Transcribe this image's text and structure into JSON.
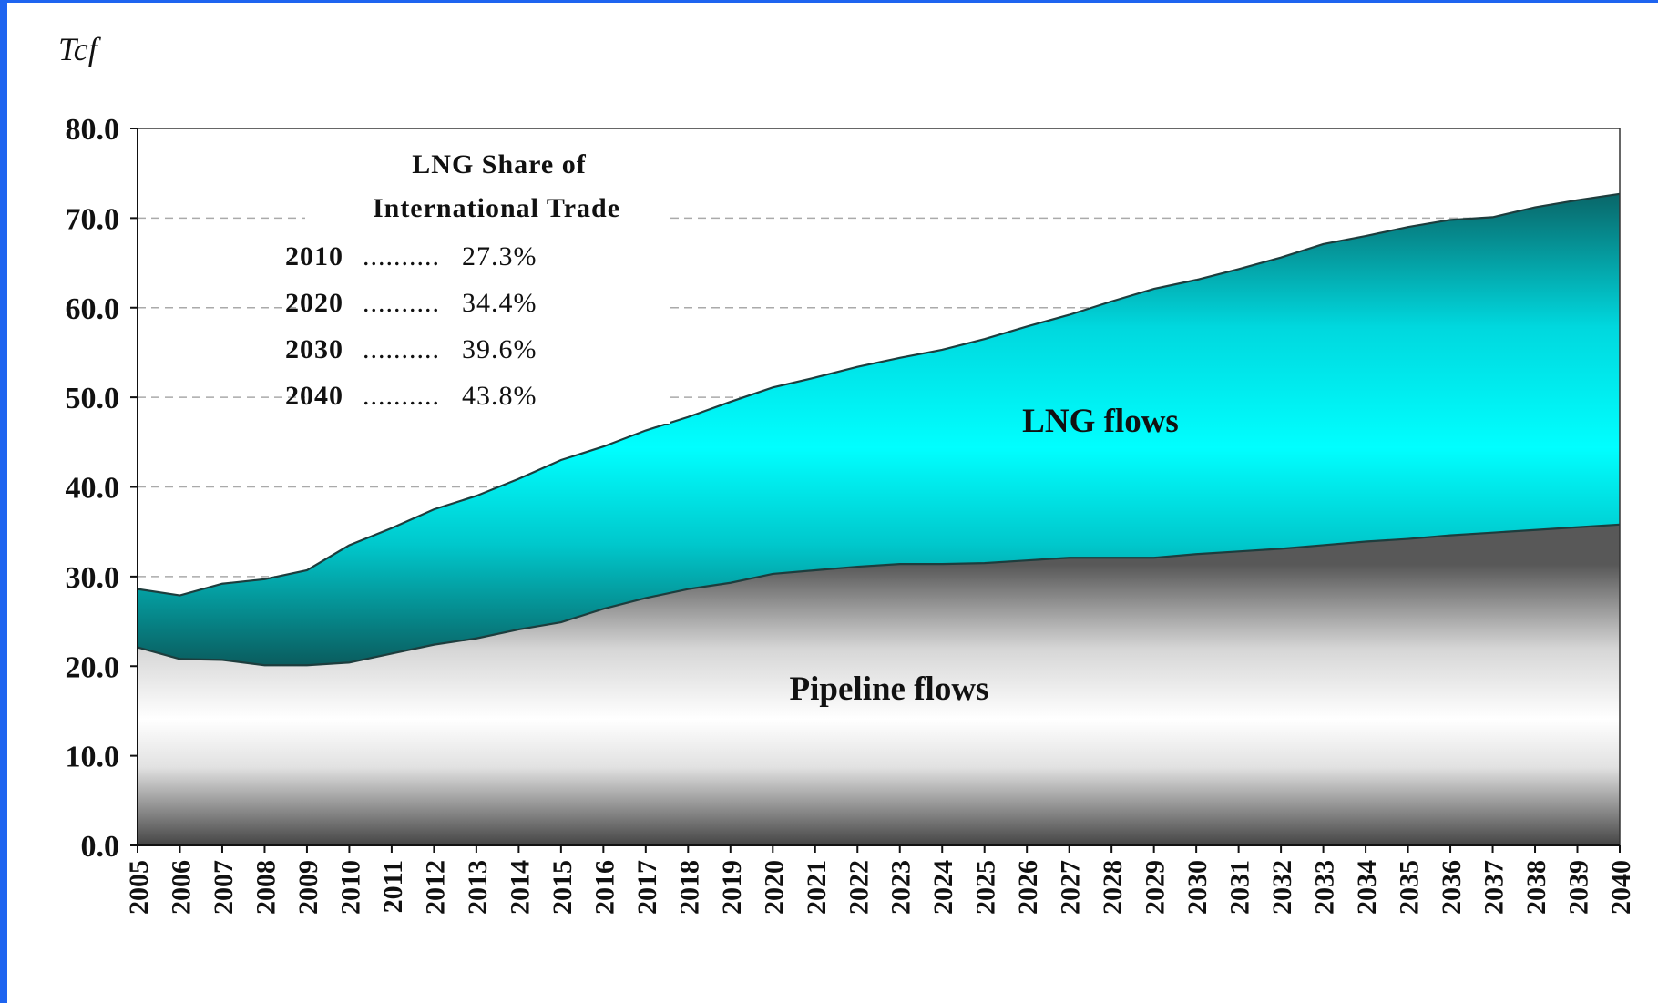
{
  "chart_data": {
    "type": "area",
    "unit_label": "Tcf",
    "x": [
      2005,
      2006,
      2007,
      2008,
      2009,
      2010,
      2011,
      2012,
      2013,
      2014,
      2015,
      2016,
      2017,
      2018,
      2019,
      2020,
      2021,
      2022,
      2023,
      2024,
      2025,
      2026,
      2027,
      2028,
      2029,
      2030,
      2031,
      2032,
      2033,
      2034,
      2035,
      2036,
      2037,
      2038,
      2039,
      2040
    ],
    "x_tick_labels": [
      "2005",
      "2006",
      "2007",
      "2008",
      "2009",
      "2010",
      "2011",
      "2012",
      "2013",
      "2014",
      "2015",
      "2016",
      "2017",
      "2018",
      "2019",
      "2020",
      "2021",
      "2022",
      "2023",
      "2024",
      "2025",
      "2026",
      "2027",
      "2028",
      "2029",
      "2030",
      "2031",
      "2032",
      "2033",
      "2034",
      "2035",
      "2036",
      "2037",
      "2038",
      "2039",
      "2040"
    ],
    "y_tick_labels": [
      "0.0",
      "10.0",
      "20.0",
      "30.0",
      "40.0",
      "50.0",
      "60.0",
      "70.0",
      "80.0"
    ],
    "ylim": [
      0,
      80
    ],
    "y_step": 10,
    "grid": "horizontal dashed",
    "stacking": "stacked",
    "series": [
      {
        "name": "Pipeline flows",
        "values": [
          22.1,
          20.8,
          20.7,
          20.1,
          20.1,
          20.4,
          21.4,
          22.4,
          23.1,
          24.1,
          24.9,
          26.4,
          27.6,
          28.6,
          29.3,
          30.3,
          30.7,
          31.1,
          31.4,
          31.4,
          31.5,
          31.8,
          32.1,
          32.1,
          32.1,
          32.5,
          32.8,
          33.1,
          33.5,
          33.9,
          34.2,
          34.6,
          34.9,
          35.2,
          35.5,
          35.8
        ],
        "color": "#b8b8b8"
      },
      {
        "name": "LNG flows",
        "values": [
          6.5,
          7.1,
          8.5,
          9.6,
          10.6,
          13.1,
          14.0,
          15.1,
          15.9,
          16.8,
          18.1,
          18.1,
          18.7,
          19.2,
          20.2,
          20.8,
          21.5,
          22.3,
          23.0,
          23.9,
          25.0,
          26.1,
          27.1,
          28.6,
          30.0,
          30.6,
          31.5,
          32.5,
          33.6,
          34.1,
          34.8,
          35.2,
          35.2,
          36.0,
          36.5,
          36.9
        ],
        "color": "#00e8ee"
      }
    ],
    "annotation": {
      "title_line1": "LNG Share of",
      "title_line2": "International Trade",
      "rows": [
        {
          "year": "2010",
          "dots": "..........",
          "value": "27.3%"
        },
        {
          "year": "2020",
          "dots": "..........",
          "value": "34.4%"
        },
        {
          "year": "2030",
          "dots": "..........",
          "value": "39.6%"
        },
        {
          "year": "2040",
          "dots": "..........",
          "value": "43.8%"
        }
      ]
    },
    "colors": {
      "frame": "#1e64f0",
      "lng_light": "#00f4f8",
      "lng_dark": "#0b6868",
      "pipeline_light": "#ffffff",
      "pipeline_dark": "#444444",
      "grid": "#aaaaaa"
    }
  }
}
